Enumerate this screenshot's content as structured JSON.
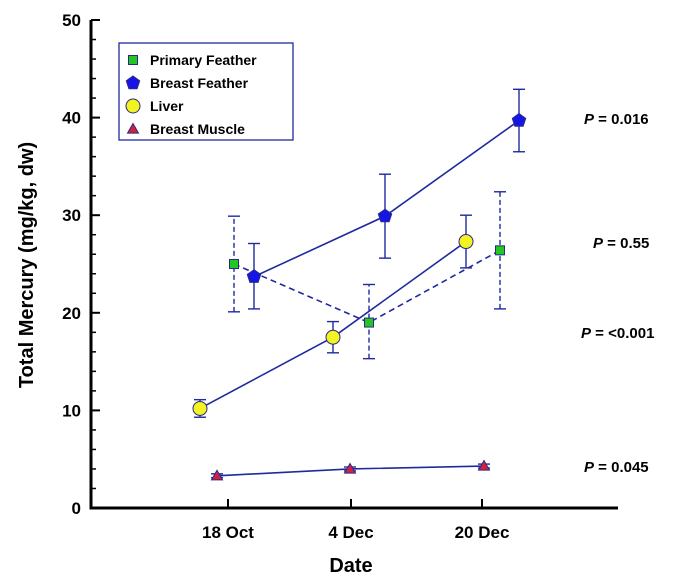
{
  "chart_data": {
    "type": "line",
    "xlabel": "Date",
    "ylabel": "Total Mercury (mg/kg, dw)",
    "ylim": [
      0,
      50
    ],
    "yticks": [
      "0",
      "10",
      "20",
      "30",
      "40",
      "50"
    ],
    "categories": [
      "18 Oct",
      "4 Dec",
      "20 Dec"
    ],
    "grid": false,
    "legend_position": "top-left",
    "series": [
      {
        "name": "Primary Feather",
        "marker": "square",
        "color": "#22c722",
        "line": "dashed",
        "values": [
          25.0,
          19.0,
          26.4
        ],
        "err_low": [
          20.1,
          15.3,
          20.4
        ],
        "err_high": [
          29.9,
          22.9,
          32.4
        ]
      },
      {
        "name": "Breast Feather",
        "marker": "pentagon",
        "color": "#1515e6",
        "line": "solid",
        "values": [
          23.7,
          29.9,
          39.7
        ],
        "err_low": [
          20.4,
          25.6,
          36.5
        ],
        "err_high": [
          27.1,
          34.2,
          42.9
        ]
      },
      {
        "name": "Liver",
        "marker": "circle",
        "color": "#f3f321",
        "line": "solid",
        "values": [
          10.2,
          17.5,
          27.3
        ],
        "err_low": [
          9.3,
          15.9,
          24.6
        ],
        "err_high": [
          11.1,
          19.1,
          30.0
        ]
      },
      {
        "name": "Breast Muscle",
        "marker": "triangle",
        "color": "#d0213f",
        "line": "solid",
        "values": [
          3.3,
          4.0,
          4.3
        ],
        "err_low": [
          3.1,
          3.8,
          4.1
        ],
        "err_high": [
          3.5,
          4.2,
          4.5
        ]
      }
    ],
    "annotations": [
      {
        "prefix": "P",
        "text": " = 0.016"
      },
      {
        "prefix": "P",
        "text": " = 0.55"
      },
      {
        "prefix": "P",
        "text": " = <0.001"
      },
      {
        "prefix": "P",
        "text": " = 0.045"
      }
    ],
    "colors": {
      "axis": "#000000",
      "series_line": "#1e2a9e"
    }
  }
}
